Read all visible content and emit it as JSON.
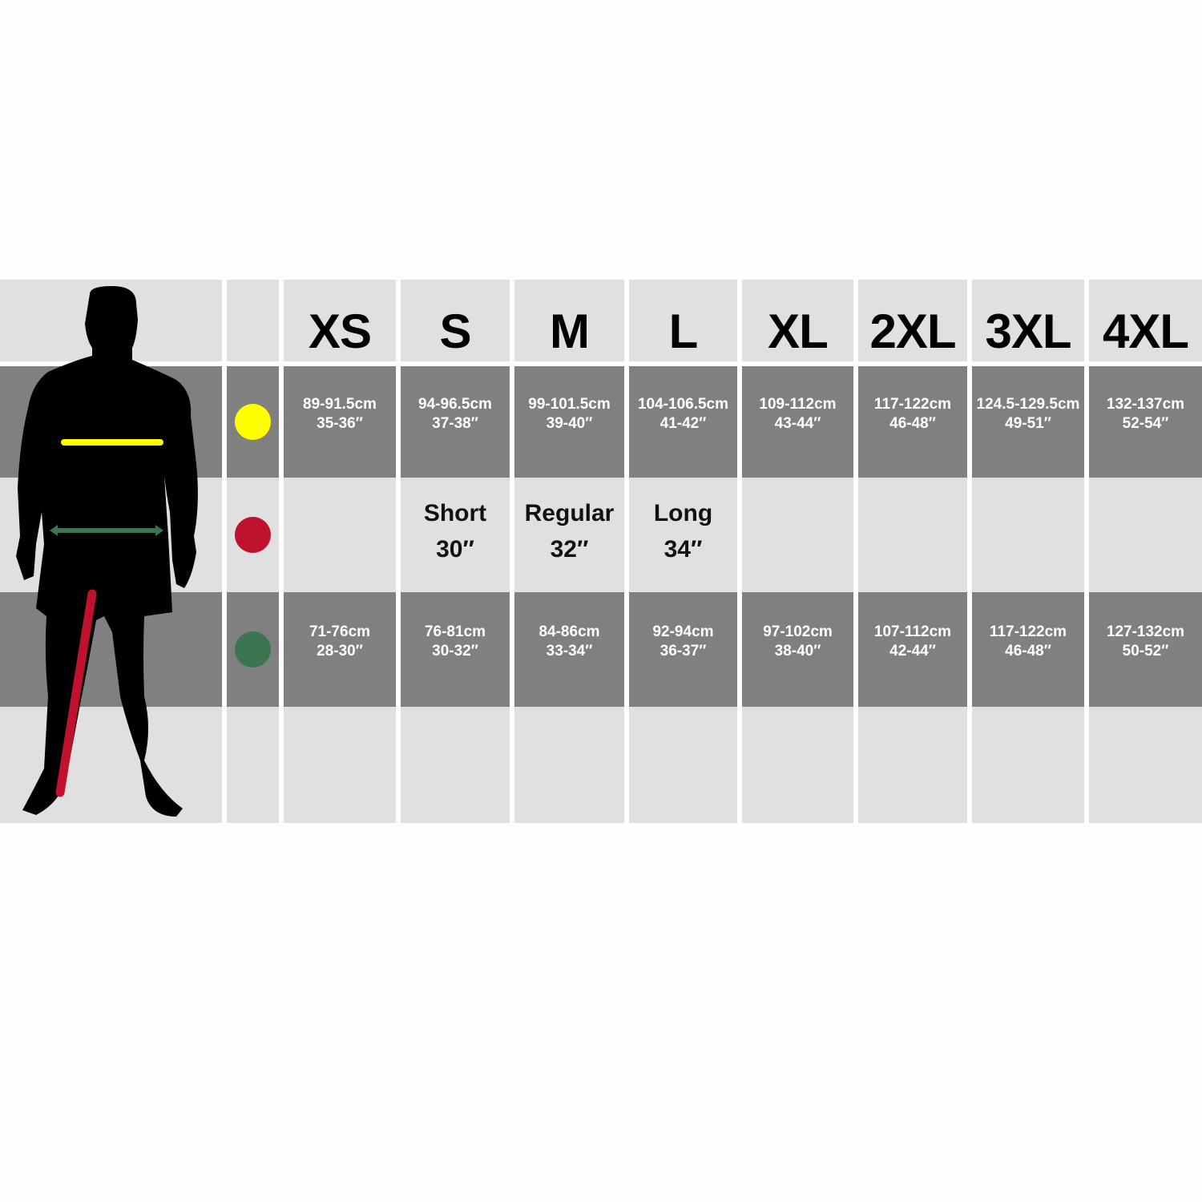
{
  "sizes": [
    "XS",
    "S",
    "M",
    "L",
    "XL",
    "2XL",
    "3XL",
    "4XL"
  ],
  "rows": {
    "chest": {
      "color": "#ffff00",
      "values": [
        [
          "89-91.5cm",
          "35-36″"
        ],
        [
          "94-96.5cm",
          "37-38″"
        ],
        [
          "99-101.5cm",
          "39-40″"
        ],
        [
          "104-106.5cm",
          "41-42″"
        ],
        [
          "109-112cm",
          "43-44″"
        ],
        [
          "117-122cm",
          "46-48″"
        ],
        [
          "124.5-129.5cm",
          "49-51″"
        ],
        [
          "132-137cm",
          "52-54″"
        ]
      ]
    },
    "inseam": {
      "color": "#c0112f",
      "values": [
        null,
        [
          "Short",
          "30″"
        ],
        [
          "Regular",
          "32″"
        ],
        [
          "Long",
          "34″"
        ],
        null,
        null,
        null,
        null
      ]
    },
    "waist": {
      "color": "#3b7650",
      "values": [
        [
          "71-76cm",
          "28-30″"
        ],
        [
          "76-81cm",
          "30-32″"
        ],
        [
          "84-86cm",
          "33-34″"
        ],
        [
          "92-94cm",
          "36-37″"
        ],
        [
          "97-102cm",
          "38-40″"
        ],
        [
          "107-112cm",
          "42-44″"
        ],
        [
          "117-122cm",
          "46-48″"
        ],
        [
          "127-132cm",
          "50-52″"
        ]
      ]
    }
  },
  "colors": {
    "light_cell": "#e0e0e0",
    "dark_cell": "#808080",
    "silhouette": "#000000"
  }
}
